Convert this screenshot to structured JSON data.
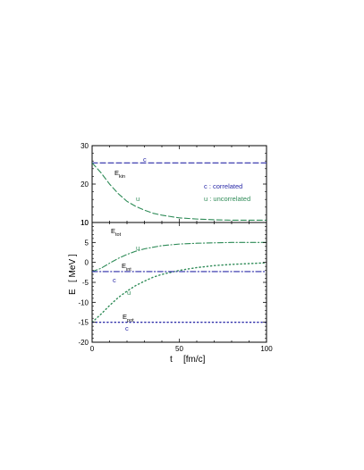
{
  "chart_data": {
    "type": "line",
    "xlabel": "t",
    "xunit": "[fm/c]",
    "ylabel": "E",
    "yunit": "[ MeV ]",
    "xlim": [
      0,
      100
    ],
    "xticks": [
      "0",
      "50",
      "100"
    ],
    "panels": [
      {
        "name": "top",
        "ylim": [
          10,
          30
        ],
        "yticks": [
          "10",
          "20",
          "30"
        ],
        "annotations": {
          "kin_main": "E",
          "kin_sub": "kin",
          "c_label": "c",
          "u_label": "u",
          "legend_c": "c : correlated",
          "legend_u": "u : uncorrelated"
        },
        "series": [
          {
            "key": "kin_c",
            "color": "#2a2aa8",
            "dash": "dashed",
            "x": [
              0,
              100
            ],
            "y": [
              25.5,
              25.5
            ]
          },
          {
            "key": "kin_u",
            "color": "#2e8b57",
            "dash": "dashed",
            "x": [
              0,
              5,
              10,
              15,
              20,
              25,
              30,
              35,
              40,
              50,
              60,
              70,
              80,
              90,
              100
            ],
            "y": [
              25.5,
              23.0,
              20.0,
              17.5,
              15.5,
              14.2,
              13.2,
              12.4,
              11.9,
              11.2,
              10.9,
              10.7,
              10.6,
              10.6,
              10.6
            ]
          }
        ]
      },
      {
        "name": "bottom",
        "ylim": [
          -20,
          10
        ],
        "yticks": [
          "-20",
          "-15",
          "-10",
          "-5",
          "0",
          "5",
          "10"
        ],
        "annotations": {
          "tot_main": "E",
          "tot_sub": "tot",
          "int_main": "E",
          "int_sub": "int",
          "pot_main": "E",
          "pot_sub": "pot",
          "u_tot": "u",
          "u_int": "u",
          "c_int": "c",
          "c_pot": "c"
        },
        "series": [
          {
            "key": "tot_u",
            "color": "#2e8b57",
            "dash": "dashdot",
            "x": [
              0,
              5,
              10,
              15,
              20,
              25,
              30,
              40,
              50,
              60,
              70,
              80,
              90,
              100
            ],
            "y": [
              -2.3,
              -1.5,
              -0.2,
              1.0,
              2.0,
              2.8,
              3.4,
              4.2,
              4.6,
              4.8,
              4.9,
              5.0,
              5.0,
              5.0
            ]
          },
          {
            "key": "int_u",
            "color": "#2e8b57",
            "dash": "dotted",
            "x": [
              0,
              5,
              10,
              15,
              20,
              25,
              30,
              35,
              40,
              50,
              60,
              70,
              80,
              90,
              100
            ],
            "y": [
              -15.0,
              -13.0,
              -10.8,
              -8.8,
              -7.2,
              -5.8,
              -4.7,
              -3.7,
              -3.0,
              -2.0,
              -1.3,
              -0.8,
              -0.5,
              -0.3,
              -0.1
            ]
          },
          {
            "key": "tot_c",
            "color": "#2a2aa8",
            "dash": "dashdot",
            "x": [
              0,
              100
            ],
            "y": [
              -2.3,
              -2.3
            ]
          },
          {
            "key": "pot_c",
            "color": "#2a2aa8",
            "dash": "dotted",
            "x": [
              0,
              100
            ],
            "y": [
              -15.0,
              -15.0
            ]
          }
        ]
      }
    ]
  }
}
